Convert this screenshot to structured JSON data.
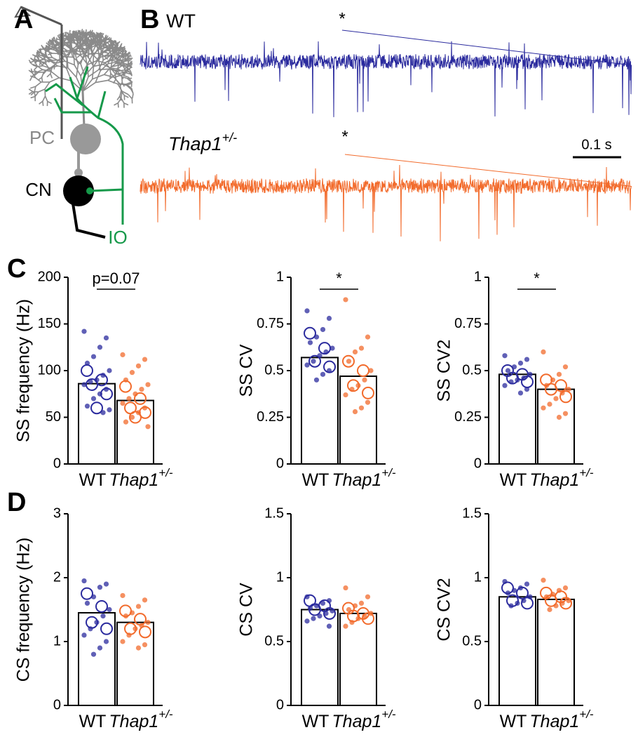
{
  "panel_labels": [
    "A",
    "B",
    "C",
    "D"
  ],
  "schematic": {
    "labels": [
      "PC",
      "CN",
      "IO"
    ]
  },
  "traces": {
    "wt_label": "WT",
    "mutant_label": {
      "name": "Thap1",
      "superscript": "+/-"
    },
    "marker": "*",
    "scale_bar": "0.1 s",
    "colors": [
      "#2b2b9e",
      "#f26b2c"
    ]
  },
  "chart_data": [
    {
      "type": "bar",
      "ylabel": "SS frequency (Hz)",
      "categories": [
        {
          "name": "WT"
        },
        {
          "name": "Thap1",
          "superscript": "+/-"
        }
      ],
      "values": [
        86,
        68
      ],
      "colors": [
        "#2b2b9e",
        "#f26b2c"
      ],
      "points": [
        [
          142,
          135,
          125,
          115,
          108,
          100,
          95,
          90,
          88,
          85,
          80,
          75,
          70,
          62,
          58,
          55
        ],
        [
          117,
          112,
          105,
          98,
          90,
          85,
          80,
          75,
          70,
          65,
          60,
          55,
          50,
          45,
          40
        ]
      ],
      "circles": [
        [
          100,
          90,
          85,
          75,
          60
        ],
        [
          83,
          70,
          60,
          55,
          50
        ]
      ],
      "ylim": [
        0,
        200
      ],
      "yticks": [
        0,
        50,
        100,
        150,
        200
      ],
      "annotation": "p=0.07"
    },
    {
      "type": "bar",
      "ylabel": "SS CV",
      "categories": [
        {
          "name": "WT"
        },
        {
          "name": "Thap1",
          "superscript": "+/-"
        }
      ],
      "values": [
        0.57,
        0.47
      ],
      "colors": [
        "#2b2b9e",
        "#f26b2c"
      ],
      "points": [
        [
          0.82,
          0.78,
          0.72,
          0.68,
          0.65,
          0.62,
          0.6,
          0.58,
          0.55,
          0.53,
          0.5,
          0.48,
          0.45
        ],
        [
          0.88,
          0.68,
          0.62,
          0.6,
          0.55,
          0.5,
          0.45,
          0.42,
          0.4,
          0.37,
          0.33,
          0.3,
          0.28
        ]
      ],
      "circles": [
        [
          0.7,
          0.62,
          0.55,
          0.52
        ],
        [
          0.55,
          0.5,
          0.42,
          0.38
        ]
      ],
      "ylim": [
        0,
        1
      ],
      "yticks": [
        0,
        0.25,
        0.5,
        0.75,
        1
      ],
      "annotation": "*"
    },
    {
      "type": "bar",
      "ylabel": "SS CV2",
      "categories": [
        {
          "name": "WT"
        },
        {
          "name": "Thap1",
          "superscript": "+/-"
        }
      ],
      "values": [
        0.48,
        0.4
      ],
      "colors": [
        "#2b2b9e",
        "#f26b2c"
      ],
      "points": [
        [
          0.58,
          0.56,
          0.54,
          0.52,
          0.5,
          0.48,
          0.46,
          0.45,
          0.44,
          0.42,
          0.4,
          0.38
        ],
        [
          0.6,
          0.52,
          0.48,
          0.45,
          0.42,
          0.4,
          0.38,
          0.35,
          0.32,
          0.3,
          0.27,
          0.25
        ]
      ],
      "circles": [
        [
          0.5,
          0.48,
          0.46,
          0.44
        ],
        [
          0.45,
          0.42,
          0.4,
          0.36
        ]
      ],
      "ylim": [
        0,
        1
      ],
      "yticks": [
        0,
        0.25,
        0.5,
        0.75,
        1
      ],
      "annotation": "*"
    },
    {
      "type": "bar",
      "ylabel": "CS frequency (Hz)",
      "categories": [
        {
          "name": "WT"
        },
        {
          "name": "Thap1",
          "superscript": "+/-"
        }
      ],
      "values": [
        1.45,
        1.3
      ],
      "colors": [
        "#2b2b9e",
        "#f26b2c"
      ],
      "points": [
        [
          1.95,
          1.9,
          1.85,
          1.7,
          1.6,
          1.5,
          1.4,
          1.3,
          1.2,
          1.1,
          1.0,
          0.9,
          0.8
        ],
        [
          1.72,
          1.65,
          1.55,
          1.45,
          1.4,
          1.3,
          1.25,
          1.2,
          1.1,
          1.0,
          0.95,
          0.9
        ]
      ],
      "circles": [
        [
          1.75,
          1.55,
          1.3,
          1.2
        ],
        [
          1.48,
          1.35,
          1.2,
          1.15
        ]
      ],
      "ylim": [
        0,
        3
      ],
      "yticks": [
        0,
        1,
        2,
        3
      ]
    },
    {
      "type": "bar",
      "ylabel": "CS CV",
      "categories": [
        {
          "name": "WT"
        },
        {
          "name": "Thap1",
          "superscript": "+/-"
        }
      ],
      "values": [
        0.75,
        0.72
      ],
      "colors": [
        "#2b2b9e",
        "#f26b2c"
      ],
      "points": [
        [
          0.85,
          0.82,
          0.8,
          0.78,
          0.76,
          0.74,
          0.72,
          0.7,
          0.68,
          0.66,
          0.62
        ],
        [
          0.92,
          0.85,
          0.8,
          0.78,
          0.75,
          0.72,
          0.7,
          0.68,
          0.65,
          0.62
        ]
      ],
      "circles": [
        [
          0.82,
          0.78,
          0.75,
          0.72
        ],
        [
          0.76,
          0.72,
          0.7,
          0.68
        ]
      ],
      "ylim": [
        0,
        1.5
      ],
      "yticks": [
        0,
        0.5,
        1,
        1.5
      ]
    },
    {
      "type": "bar",
      "ylabel": "CS CV2",
      "categories": [
        {
          "name": "WT"
        },
        {
          "name": "Thap1",
          "superscript": "+/-"
        }
      ],
      "values": [
        0.85,
        0.83
      ],
      "colors": [
        "#2b2b9e",
        "#f26b2c"
      ],
      "points": [
        [
          0.97,
          0.95,
          0.92,
          0.9,
          0.88,
          0.85,
          0.82,
          0.8,
          0.78
        ],
        [
          0.98,
          0.92,
          0.9,
          0.87,
          0.85,
          0.82,
          0.8,
          0.78,
          0.75
        ]
      ],
      "circles": [
        [
          0.92,
          0.88,
          0.82,
          0.8
        ],
        [
          0.88,
          0.85,
          0.82,
          0.8
        ]
      ],
      "ylim": [
        0,
        1.5
      ],
      "yticks": [
        0,
        0.5,
        1,
        1.5
      ]
    }
  ]
}
